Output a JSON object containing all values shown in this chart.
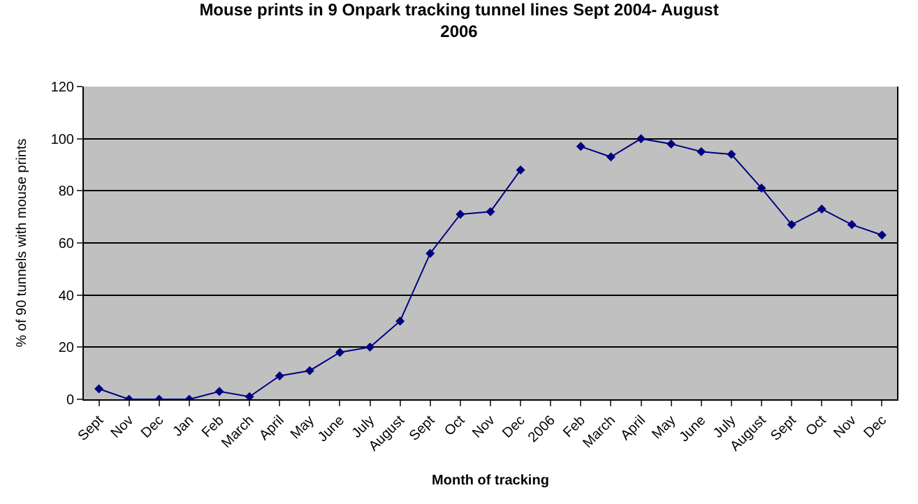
{
  "chart_data": {
    "type": "line",
    "title": "Mouse prints in 9 Onpark tracking tunnel lines Sept 2004- August\n2006",
    "xlabel": "Month of tracking",
    "ylabel": "% of 90 tunnels with mouse prints",
    "categories": [
      "Sept",
      "Nov",
      "Dec",
      "Jan",
      "Feb",
      "March",
      "April",
      "May",
      "June",
      "July",
      "August",
      "Sept",
      "Oct",
      "Nov",
      "Dec",
      "2006",
      "Feb",
      "March",
      "April",
      "May",
      "June",
      "July",
      "August",
      "Sept",
      "Oct",
      "Nov",
      "Dec"
    ],
    "series": [
      {
        "color": "#000080",
        "values": [
          4,
          0,
          0,
          0,
          3,
          1,
          9,
          11,
          18,
          20,
          30,
          56,
          71,
          72,
          88,
          null,
          97,
          93,
          100,
          98,
          95,
          94,
          81,
          67,
          73,
          67,
          63
        ]
      }
    ],
    "ylim": [
      0,
      120
    ],
    "yticks": [
      0,
      20,
      40,
      60,
      80,
      100,
      120
    ],
    "grid": "y",
    "legend": false,
    "marker": "diamond",
    "line_style": "solid"
  }
}
